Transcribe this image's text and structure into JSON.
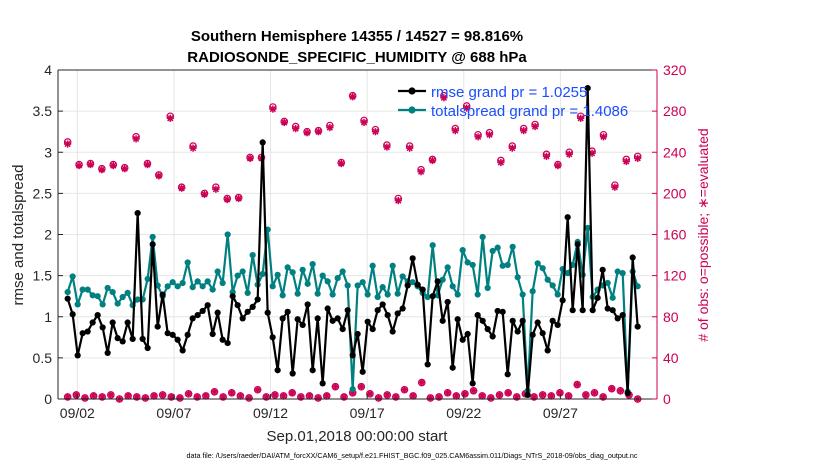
{
  "chart_data": {
    "type": "line",
    "title": "Southern Hemisphere 14355 / 14527 = 98.816%",
    "subtitle": "RADIOSONDE_SPECIFIC_HUMIDITY @ 688 hPa",
    "xlabel": "Sep.01,2018 00:00:00 start",
    "ylabel": "rmse and totalspread",
    "y2label": "# of obs: o=possible; ∗=evaluated",
    "footnote": "data file: /Users/raeder/DAI/ATM_forcXX/CAM6_setup/f.e21.FHIST_BGC.f09_025.CAM6assim.011/Diags_NTrS_2018-09/obs_diag_output.nc",
    "xlim": [
      1,
      32
    ],
    "ylim": [
      0,
      4
    ],
    "y2lim": [
      0,
      320
    ],
    "grid": true,
    "legend_location": "top-right",
    "xticks": [
      {
        "day": 2,
        "label": "09/02"
      },
      {
        "day": 7,
        "label": "09/07"
      },
      {
        "day": 12,
        "label": "09/12"
      },
      {
        "day": 17,
        "label": "09/17"
      },
      {
        "day": 22,
        "label": "09/22"
      },
      {
        "day": 27,
        "label": "09/27"
      }
    ],
    "yticks": [
      "0",
      "0.5",
      "1",
      "1.5",
      "2",
      "2.5",
      "3",
      "3.5",
      "4"
    ],
    "y2ticks": [
      "0",
      "40",
      "80",
      "120",
      "160",
      "200",
      "240",
      "280",
      "320"
    ],
    "colors": {
      "rmse": "#000000",
      "spread": "#008080",
      "obs": "#cc0055",
      "legend_text": "#1a4dff",
      "axis": "#262626"
    },
    "series": [
      {
        "name": "rmse grand pr = 1.0255",
        "color": "#000000",
        "values": [
          1.22,
          1.03,
          0.53,
          0.8,
          0.82,
          0.93,
          1.02,
          0.87,
          0.56,
          0.93,
          0.74,
          0.7,
          0.93,
          0.73,
          2.26,
          0.73,
          0.62,
          1.88,
          0.88,
          1.27,
          0.8,
          0.78,
          0.72,
          0.59,
          0.78,
          0.98,
          1.02,
          1.07,
          1.14,
          0.79,
          1.05,
          0.72,
          0.68,
          1.25,
          1.14,
          0.98,
          1.06,
          1.12,
          1.21,
          3.12,
          1.05,
          0.75,
          0.35,
          0.98,
          1.06,
          0.31,
          0.97,
          0.9,
          1.15,
          0.35,
          0.98,
          0.19,
          1.1,
          0.95,
          0.98,
          0.85,
          1.08,
          0.53,
          0.79,
          0.33,
          0.94,
          0.85,
          1.08,
          1.15,
          1.02,
          0.82,
          1.04,
          1.1,
          1.38,
          1.71,
          1.39,
          1.33,
          0.42,
          1.25,
          1.43,
          0.95,
          1.18,
          0.38,
          0.97,
          0.72,
          0.79,
          0.19,
          1.02,
          0.95,
          0.85,
          0.76,
          1.07,
          1.06,
          0.3,
          0.95,
          0.82,
          0.95,
          0.05,
          0.78,
          0.93,
          0.8,
          0.59,
          0.95,
          0.9,
          1.2,
          2.21,
          1.08,
          1.88,
          1.08,
          3.78,
          1.08,
          1.23,
          1.57,
          1.1,
          1.08,
          0.98,
          1.02,
          0.07,
          1.72,
          0.88
        ]
      },
      {
        "name": "totalspread grand pr = 1.4086",
        "color": "#008080",
        "values": [
          1.3,
          1.49,
          1.15,
          1.33,
          1.33,
          1.26,
          1.25,
          1.15,
          1.35,
          1.3,
          1.16,
          1.24,
          1.29,
          1.14,
          1.21,
          1.21,
          1.46,
          1.97,
          1.38,
          1.25,
          1.37,
          1.42,
          1.37,
          1.41,
          1.66,
          1.36,
          1.43,
          1.37,
          1.43,
          1.33,
          1.55,
          1.41,
          2.0,
          1.3,
          1.5,
          1.55,
          1.29,
          1.75,
          1.39,
          1.52,
          2.06,
          1.37,
          1.51,
          1.26,
          1.6,
          1.54,
          1.28,
          1.57,
          1.4,
          1.64,
          1.28,
          1.5,
          1.43,
          1.27,
          1.47,
          1.55,
          1.38,
          0.12,
          1.38,
          1.42,
          1.27,
          1.62,
          1.24,
          1.36,
          1.27,
          1.62,
          1.28,
          1.49,
          1.43,
          1.42,
          1.37,
          1.29,
          1.24,
          1.87,
          1.26,
          1.45,
          1.6,
          1.37,
          1.27,
          1.81,
          1.66,
          1.63,
          1.27,
          1.97,
          1.35,
          1.8,
          1.84,
          1.62,
          1.63,
          1.85,
          1.48,
          1.27,
          0.1,
          1.31,
          1.65,
          1.59,
          1.45,
          1.38,
          1.27,
          1.58,
          1.53,
          1.63,
          1.91,
          1.51,
          2.08,
          1.24,
          1.33,
          1.38,
          1.41,
          1.23,
          1.55,
          1.53,
          0.09,
          1.55,
          1.37
        ]
      },
      {
        "name": "# of obs possible",
        "axis": "right",
        "color": "#cc0055",
        "marker": "o",
        "values": [
          250,
          228,
          229,
          224,
          228,
          225,
          255,
          229,
          218,
          275,
          206,
          246,
          200,
          206,
          195,
          196,
          235,
          235,
          284,
          270,
          265,
          260,
          261,
          266,
          230,
          295,
          271,
          262,
          247,
          195,
          246,
          223,
          233,
          295,
          263,
          285,
          257,
          259,
          232,
          246,
          263,
          267,
          238,
          228,
          240,
          275,
          241,
          257,
          208,
          233,
          236
        ]
      },
      {
        "name": "# of obs evaluated",
        "axis": "right",
        "color": "#cc0055",
        "marker": "*",
        "values": [
          248,
          227,
          228,
          223,
          227,
          224,
          253,
          228,
          217,
          273,
          205,
          244,
          199,
          204,
          194,
          195,
          234,
          234,
          282,
          269,
          263,
          259,
          260,
          264,
          229,
          294,
          269,
          260,
          245,
          193,
          244,
          221,
          232,
          293,
          261,
          283,
          255,
          257,
          230,
          244,
          261,
          265,
          236,
          227,
          238,
          273,
          239,
          255,
          206,
          231,
          234
        ]
      },
      {
        "name": "# of obs low possible",
        "axis": "right",
        "color": "#cc0055",
        "marker": "o",
        "values": [
          2,
          4,
          1,
          3,
          2,
          4,
          0,
          3,
          2,
          1,
          3,
          4,
          2,
          1,
          5,
          2,
          3,
          7,
          2,
          6,
          3,
          1,
          9,
          2,
          4,
          3,
          6,
          2,
          3,
          1,
          3,
          12,
          2,
          6,
          12,
          5,
          1,
          4,
          2,
          9,
          3,
          16,
          1,
          2,
          6,
          3,
          5,
          8,
          3,
          1,
          4,
          6,
          2,
          5,
          2,
          4,
          3,
          6,
          3,
          14,
          4,
          6,
          2,
          10,
          8,
          4,
          0
        ]
      },
      {
        "name": "# of obs low evaluated",
        "axis": "right",
        "color": "#cc0055",
        "marker": "*",
        "values": [
          2,
          4,
          1,
          3,
          2,
          4,
          0,
          3,
          2,
          1,
          3,
          4,
          2,
          1,
          5,
          2,
          3,
          7,
          2,
          6,
          3,
          1,
          9,
          2,
          4,
          3,
          6,
          2,
          3,
          1,
          3,
          12,
          2,
          6,
          12,
          5,
          1,
          4,
          2,
          9,
          3,
          16,
          1,
          2,
          6,
          3,
          5,
          8,
          3,
          1,
          4,
          6,
          2,
          5,
          2,
          4,
          3,
          6,
          3,
          14,
          4,
          6,
          2,
          10,
          8,
          4,
          0
        ]
      }
    ]
  }
}
